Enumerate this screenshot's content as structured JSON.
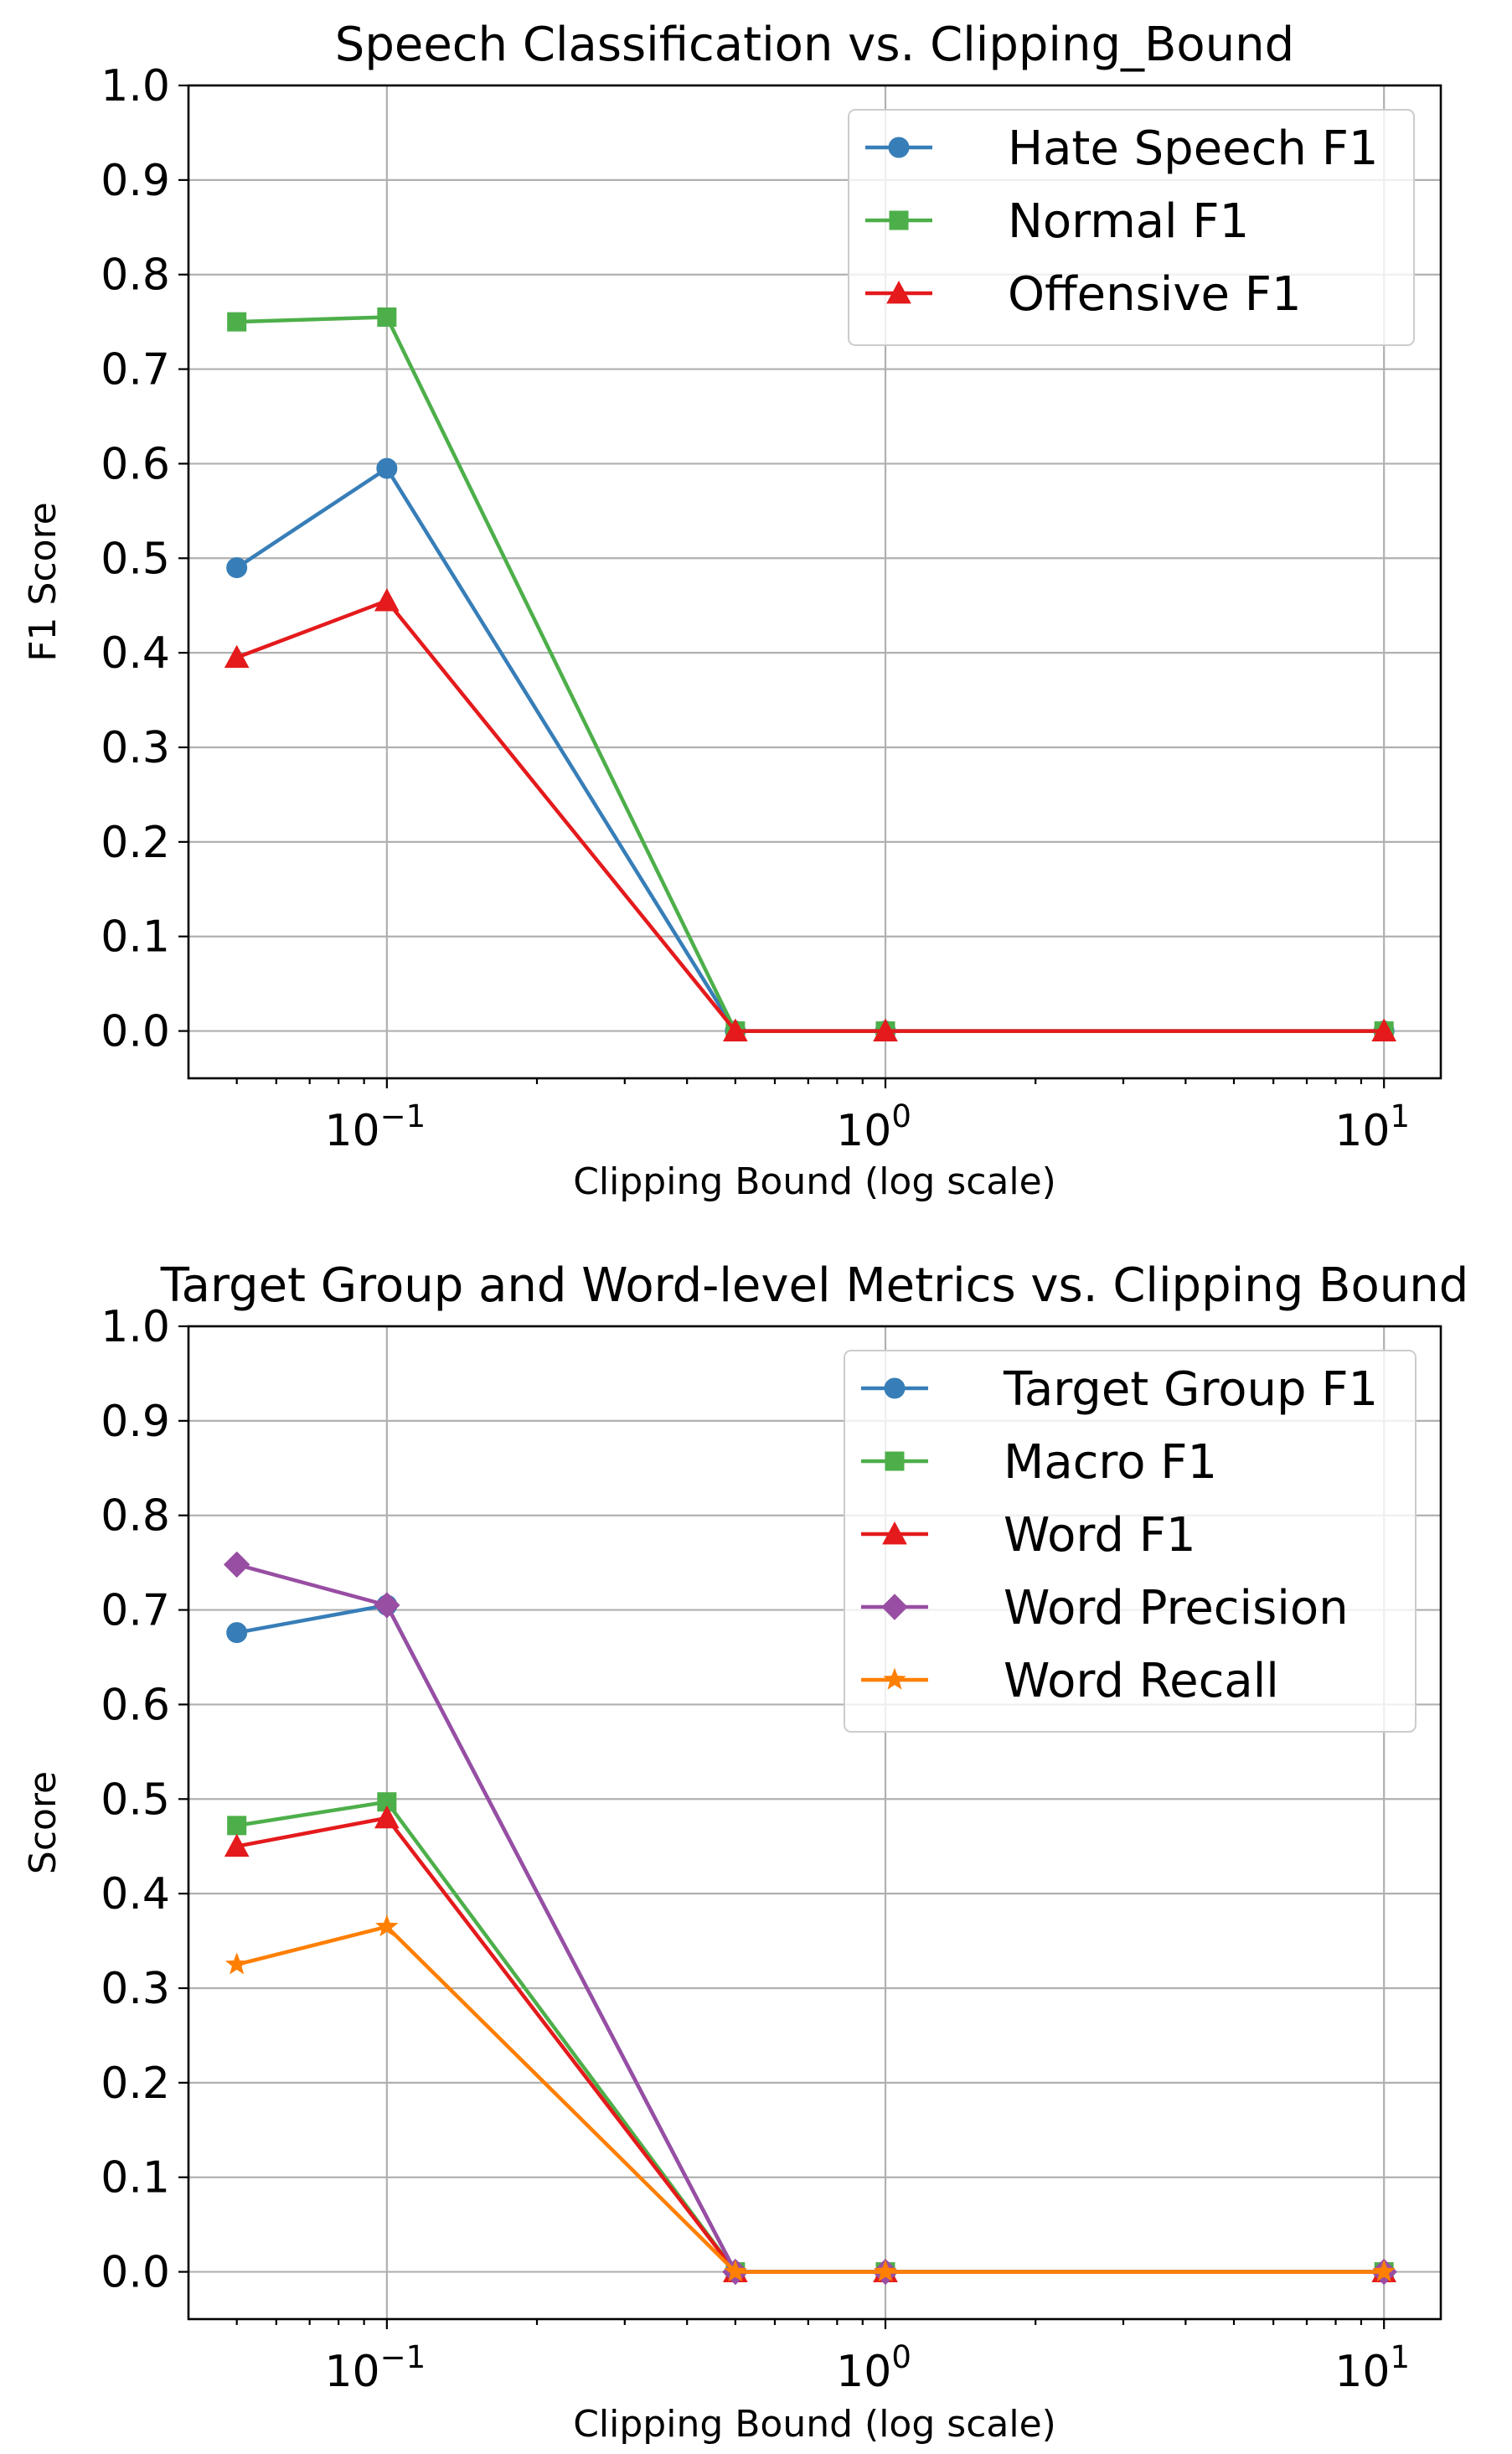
{
  "chart_data": [
    {
      "type": "line",
      "title": "Speech Classification vs. Clipping_Bound",
      "xlabel": "Clipping Bound (log scale)",
      "ylabel": "F1 Score",
      "xscale": "log",
      "x": [
        0.05,
        0.1,
        0.5,
        1,
        10
      ],
      "xlim": [
        0.04,
        13
      ],
      "ylim": [
        -0.05,
        1.0
      ],
      "yticks": [
        0.0,
        0.1,
        0.2,
        0.3,
        0.4,
        0.5,
        0.6,
        0.7,
        0.8,
        0.9,
        1.0
      ],
      "ytick_labels": [
        "0.0",
        "0.1",
        "0.2",
        "0.3",
        "0.4",
        "0.5",
        "0.6",
        "0.7",
        "0.8",
        "0.9",
        "1.0"
      ],
      "xticks": [
        {
          "value": 0.1,
          "base": "10",
          "exp": "−1"
        },
        {
          "value": 1,
          "base": "10",
          "exp": "0"
        },
        {
          "value": 10,
          "base": "10",
          "exp": "1"
        }
      ],
      "grid": true,
      "legend_position": "top-right",
      "series": [
        {
          "name": "Hate Speech F1",
          "color": "#377eb8",
          "marker": "circle",
          "values": [
            0.49,
            0.595,
            0.0,
            0.0,
            0.0
          ]
        },
        {
          "name": "Normal F1",
          "color": "#4daf4a",
          "marker": "square",
          "values": [
            0.75,
            0.755,
            0.0,
            0.0,
            0.0
          ]
        },
        {
          "name": "Offensive F1",
          "color": "#e41a1c",
          "marker": "triangle",
          "values": [
            0.395,
            0.455,
            0.0,
            0.0,
            0.0
          ]
        }
      ]
    },
    {
      "type": "line",
      "title": "Target Group and Word-level Metrics vs. Clipping Bound",
      "xlabel": "Clipping Bound (log scale)",
      "ylabel": "Score",
      "xscale": "log",
      "x": [
        0.05,
        0.1,
        0.5,
        1,
        10
      ],
      "xlim": [
        0.04,
        13
      ],
      "ylim": [
        -0.05,
        1.0
      ],
      "yticks": [
        0.0,
        0.1,
        0.2,
        0.3,
        0.4,
        0.5,
        0.6,
        0.7,
        0.8,
        0.9,
        1.0
      ],
      "ytick_labels": [
        "0.0",
        "0.1",
        "0.2",
        "0.3",
        "0.4",
        "0.5",
        "0.6",
        "0.7",
        "0.8",
        "0.9",
        "1.0"
      ],
      "xticks": [
        {
          "value": 0.1,
          "base": "10",
          "exp": "−1"
        },
        {
          "value": 1,
          "base": "10",
          "exp": "0"
        },
        {
          "value": 10,
          "base": "10",
          "exp": "1"
        }
      ],
      "grid": true,
      "legend_position": "top-right",
      "series": [
        {
          "name": "Target Group F1",
          "color": "#377eb8",
          "marker": "circle",
          "values": [
            0.676,
            0.705,
            0.0,
            0.0,
            0.0
          ]
        },
        {
          "name": "Macro F1",
          "color": "#4daf4a",
          "marker": "square",
          "values": [
            0.472,
            0.497,
            0.0,
            0.0,
            0.0
          ]
        },
        {
          "name": "Word F1",
          "color": "#e41a1c",
          "marker": "triangle",
          "values": [
            0.45,
            0.48,
            0.0,
            0.0,
            0.0
          ]
        },
        {
          "name": "Word Precision",
          "color": "#984ea3",
          "marker": "diamond",
          "values": [
            0.748,
            0.705,
            0.0,
            0.0,
            0.0
          ]
        },
        {
          "name": "Word Recall",
          "color": "#ff7f00",
          "marker": "star",
          "values": [
            0.325,
            0.365,
            0.0,
            0.0,
            0.0
          ]
        }
      ]
    }
  ]
}
